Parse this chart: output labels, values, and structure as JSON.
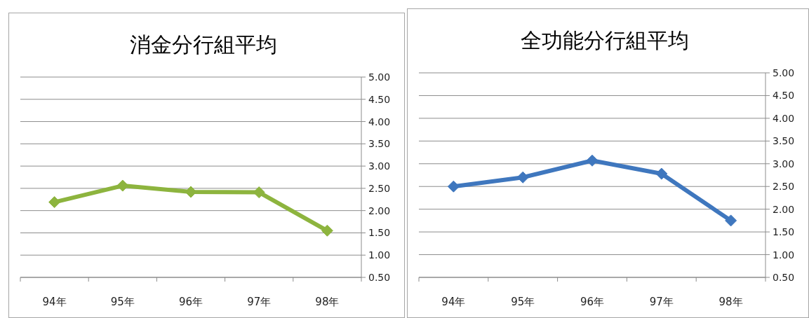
{
  "chart_data": [
    {
      "type": "line",
      "title": "消金分行組平均",
      "categories": [
        "94年",
        "95年",
        "96年",
        "97年",
        "98年"
      ],
      "series": [
        {
          "color": "#8db43e",
          "values": [
            2.19,
            2.56,
            2.42,
            2.41,
            1.55
          ]
        }
      ],
      "ylim": [
        0.5,
        5
      ],
      "yticks": [
        {
          "value": 0.5,
          "label": "0.50"
        },
        {
          "value": 1,
          "label": "1.00"
        },
        {
          "value": 1.5,
          "label": "1.50"
        },
        {
          "value": 2,
          "label": "2.00"
        },
        {
          "value": 2.5,
          "label": "2.50"
        },
        {
          "value": 3,
          "label": "3.00"
        },
        {
          "value": 3.5,
          "label": "3.50"
        },
        {
          "value": 4,
          "label": "4.00"
        },
        {
          "value": 4.5,
          "label": "4.50"
        },
        {
          "value": 5,
          "label": "5.00"
        }
      ],
      "grid": "y",
      "marker": "diamond",
      "line_style": "solid"
    },
    {
      "type": "line",
      "title": "全功能分行組平均",
      "categories": [
        "94年",
        "95年",
        "96年",
        "97年",
        "98年"
      ],
      "series": [
        {
          "color": "#3f77be",
          "values": [
            2.5,
            2.7,
            3.07,
            2.78,
            1.75
          ]
        }
      ],
      "ylim": [
        0.5,
        5
      ],
      "yticks": [
        {
          "value": 0.5,
          "label": "0.50"
        },
        {
          "value": 1,
          "label": "1.00"
        },
        {
          "value": 1.5,
          "label": "1.50"
        },
        {
          "value": 2,
          "label": "2.00"
        },
        {
          "value": 2.5,
          "label": "2.50"
        },
        {
          "value": 3,
          "label": "3.00"
        },
        {
          "value": 3.5,
          "label": "3.50"
        },
        {
          "value": 4,
          "label": "4.00"
        },
        {
          "value": 4.5,
          "label": "4.50"
        },
        {
          "value": 5,
          "label": "5.00"
        }
      ],
      "grid": "y",
      "marker": "diamond",
      "line_style": "solid"
    }
  ]
}
